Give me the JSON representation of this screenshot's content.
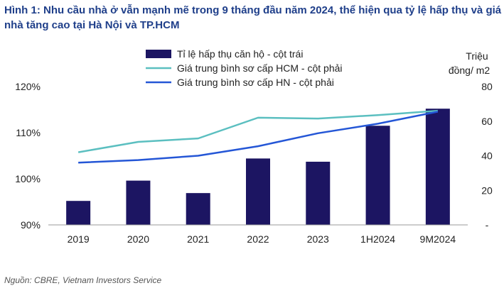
{
  "title": "Hình 1: Nhu cầu nhà ở vẫn mạnh mẽ trong 9 tháng đầu năm 2024, thể hiện qua tỷ lệ hấp thụ và giá nhà tăng cao tại Hà Nội và TP.HCM",
  "source": "Nguồn: CBRE, Vietnam Investors Service",
  "colors": {
    "bar": "#1c1562",
    "hcm": "#5bbfc0",
    "hn": "#2456d6"
  },
  "chart_data": {
    "type": "bar",
    "categories": [
      "2019",
      "2020",
      "2021",
      "2022",
      "2023",
      "1H2024",
      "9M2024"
    ],
    "series": [
      {
        "name": "Tỉ lệ hấp thụ căn hộ - cột trái",
        "type": "bar",
        "axis": "left",
        "values": [
          95.2,
          99.6,
          96.9,
          104.4,
          103.7,
          111.5,
          115.2
        ]
      },
      {
        "name": "Giá trung bình sơ cấp HCM - cột phải",
        "type": "line",
        "axis": "right",
        "values": [
          42,
          48,
          50,
          62,
          61.5,
          63.5,
          66
        ]
      },
      {
        "name": "Giá trung bình sơ cấp HN - cột phải",
        "type": "line",
        "axis": "right",
        "values": [
          36,
          37.5,
          40,
          45.5,
          53,
          58.5,
          65.5
        ]
      }
    ],
    "y_left": {
      "min": 90,
      "max": 120,
      "ticks": [
        "90%",
        "100%",
        "110%",
        "120%"
      ],
      "tick_values": [
        90,
        100,
        110,
        120
      ]
    },
    "y_right": {
      "min": 0,
      "max": 80,
      "ticks": [
        "-",
        "20",
        "40",
        "60",
        "80"
      ],
      "tick_values": [
        0,
        20,
        40,
        60,
        80
      ],
      "label_lines": [
        "Triệu",
        "đồng/ m2"
      ]
    },
    "grid": false,
    "legend": "top-left"
  }
}
